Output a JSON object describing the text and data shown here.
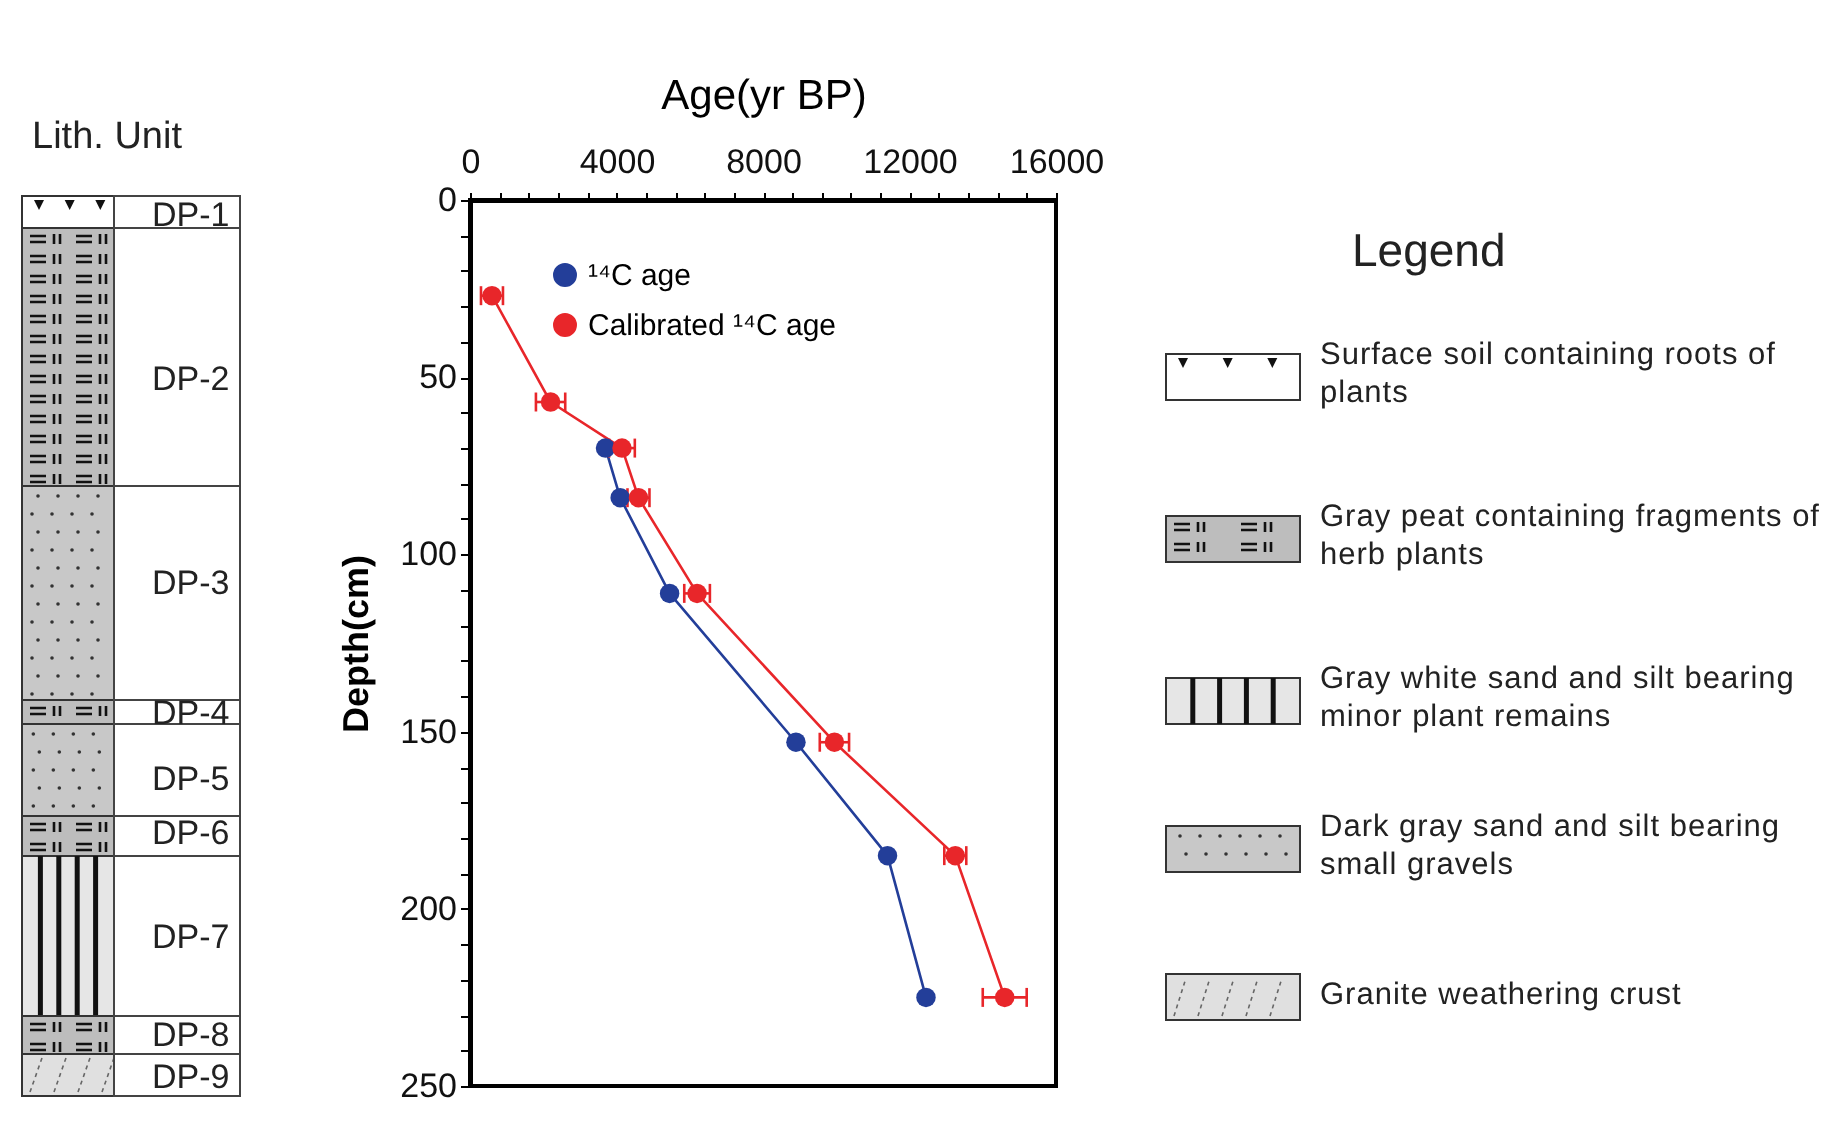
{
  "chart_data": {
    "type": "line",
    "xlabel": "Age(yr BP)",
    "ylabel": "Depth(cm)",
    "xlim": [
      0,
      16000
    ],
    "ylim": [
      250,
      0
    ],
    "xticks": [
      0,
      {
        "value": 800,
        "label": null
      },
      {
        "value": 1600,
        "label": null
      },
      {
        "value": 2400,
        "label": null
      },
      {
        "value": 3200,
        "label": null
      },
      4000,
      {
        "value": 4800,
        "label": null
      },
      {
        "value": 5600,
        "label": null
      },
      {
        "value": 6400,
        "label": null
      },
      {
        "value": 7200,
        "label": null
      },
      8000,
      {
        "value": 8800,
        "label": null
      },
      {
        "value": 9600,
        "label": null
      },
      {
        "value": 10400,
        "label": null
      },
      {
        "value": 11200,
        "label": null
      },
      12000,
      {
        "value": 12800,
        "label": null
      },
      {
        "value": 13600,
        "label": null
      },
      {
        "value": 14400,
        "label": null
      },
      {
        "value": 15200,
        "label": null
      },
      16000
    ],
    "yticks": [
      0,
      {
        "value": 10,
        "label": null
      },
      {
        "value": 20,
        "label": null
      },
      {
        "value": 30,
        "label": null
      },
      {
        "value": 40,
        "label": null
      },
      50,
      {
        "value": 60,
        "label": null
      },
      {
        "value": 70,
        "label": null
      },
      {
        "value": 80,
        "label": null
      },
      {
        "value": 90,
        "label": null
      },
      100,
      {
        "value": 110,
        "label": null
      },
      {
        "value": 120,
        "label": null
      },
      {
        "value": 130,
        "label": null
      },
      {
        "value": 140,
        "label": null
      },
      150,
      {
        "value": 160,
        "label": null
      },
      {
        "value": 170,
        "label": null
      },
      {
        "value": 180,
        "label": null
      },
      {
        "value": 190,
        "label": null
      },
      200,
      {
        "value": 210,
        "label": null
      },
      {
        "value": 220,
        "label": null
      },
      {
        "value": 230,
        "label": null
      },
      {
        "value": 240,
        "label": null
      },
      250
    ],
    "grid": false,
    "legend": "top",
    "marker": "circle",
    "line_style": "solid",
    "series": [
      {
        "name": "¹⁴C age",
        "color": "#233e99",
        "x": [
          null,
          null,
          3700,
          4100,
          5450,
          8900,
          11400,
          12450
        ],
        "values": [
          null,
          null,
          70,
          84,
          111,
          153,
          185,
          225
        ]
      },
      {
        "name": "Calibrated ¹⁴C age",
        "color": "#e8262a",
        "x": [
          600,
          2200,
          4150,
          4600,
          6200,
          9950,
          13250,
          14600
        ],
        "values": [
          27,
          57,
          70,
          84,
          111,
          153,
          185,
          225
        ],
        "xerrors": [
          300,
          400,
          350,
          300,
          350,
          400,
          300,
          600
        ]
      }
    ],
    "annotations": [
      "Lith. Unit",
      "DP-1",
      "DP-2",
      "DP-3",
      "DP-4",
      "DP-5",
      "DP-6",
      "DP-7",
      "DP-8",
      "DP-9",
      "Legend",
      "Surface soil containing roots of plants",
      "Gray peat containing fragments of herb plants",
      "Gray white sand and silt bearing minor plant remains",
      "Dark gray sand and silt bearing small gravels",
      "Granite weathering crust"
    ]
  }
}
